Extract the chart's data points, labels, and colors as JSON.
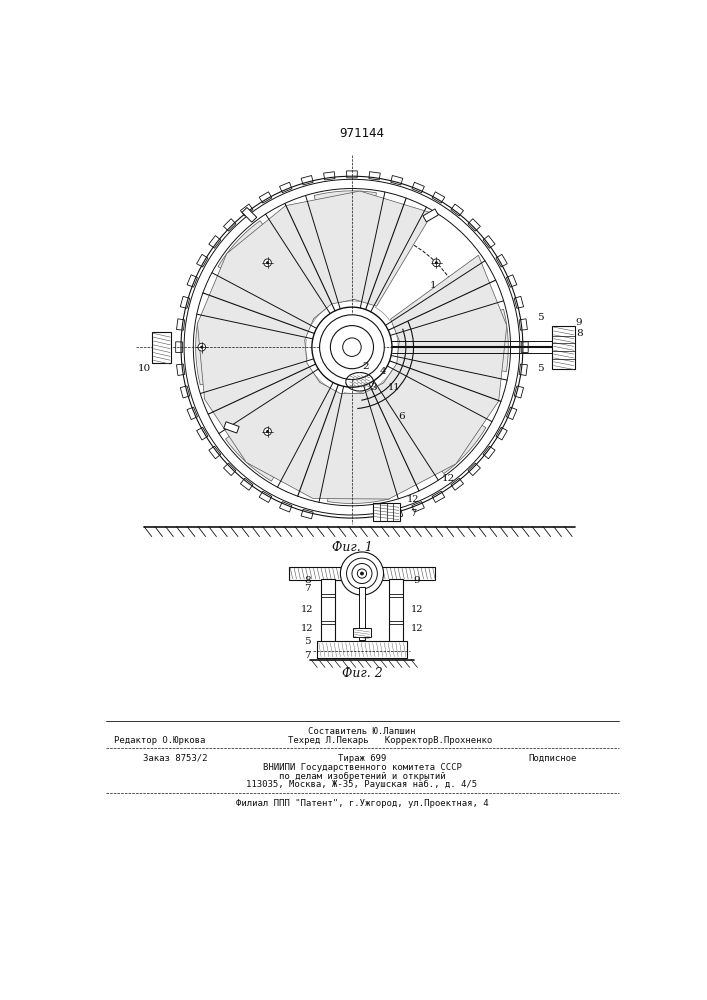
{
  "title": "971144",
  "bg_color": "#ffffff",
  "fig1_label": "Фиг. 1",
  "fig2_label": "Фиг. 2",
  "footer_col1_r1": "Редактор О.Юркова",
  "footer_col2_r1": "Составитель Ю.Лапшин",
  "footer_col2_r2": "Техред Л.Пекарь   КорректорВ.Прохненко",
  "footer_order": "Заказ 8753/2",
  "footer_tirazh": "Тираж 699",
  "footer_podp": "Подписное",
  "footer_vniip": "ВНИИПИ Государственного комитета СССР",
  "footer_po": "по делам изобретений и открытий",
  "footer_addr": "113035, Москва, Ж-35, Раушская наб., д. 4/5",
  "footer_filial": "Филиал ППП \"Патент\", г.Ужгород, ул.Проектная, 4",
  "lc": "#111111"
}
